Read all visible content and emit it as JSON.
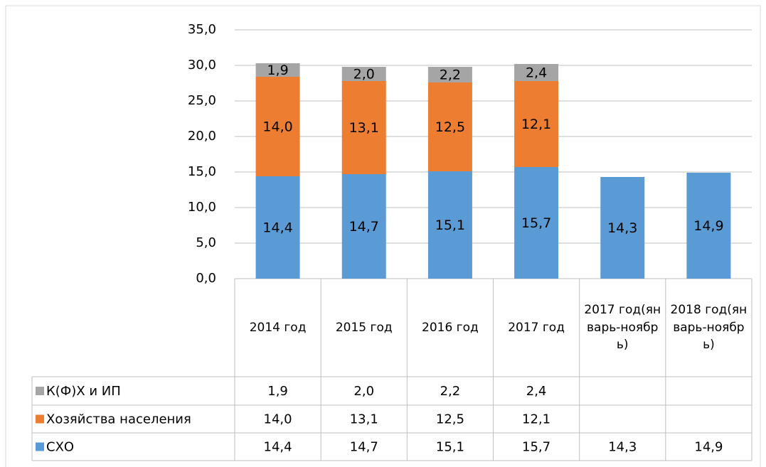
{
  "chart_data": {
    "type": "stacked_bar",
    "categories": [
      "2014 год",
      "2015 год",
      "2016 год",
      "2017 год",
      "2017 год(январь-ноябрь)",
      "2018 год(январь-ноябрь)"
    ],
    "series": [
      {
        "name": "СХО",
        "color": "#5b9bd5",
        "values": [
          14.4,
          14.7,
          15.1,
          15.7,
          14.3,
          14.9
        ],
        "value_labels": [
          "14,4",
          "14,7",
          "15,1",
          "15,7",
          "14,3",
          "14,9"
        ]
      },
      {
        "name": "Хозяйства населения",
        "color": "#ed7d31",
        "values": [
          14.0,
          13.1,
          12.5,
          12.1,
          null,
          null
        ],
        "value_labels": [
          "14,0",
          "13,1",
          "12,5",
          "12,1",
          null,
          null
        ]
      },
      {
        "name": "К(Ф)Х и ИП",
        "color": "#a5a5a5",
        "values": [
          1.9,
          2.0,
          2.2,
          2.4,
          null,
          null
        ],
        "value_labels": [
          "1,9",
          "2,0",
          "2,2",
          "2,4",
          null,
          null
        ]
      }
    ],
    "ylim": [
      0,
      35
    ],
    "yticks": [
      {
        "value": 0,
        "label": "0,0"
      },
      {
        "value": 5,
        "label": "5,0"
      },
      {
        "value": 10,
        "label": "10,0"
      },
      {
        "value": 15,
        "label": "15,0"
      },
      {
        "value": 20,
        "label": "20,0"
      },
      {
        "value": 25,
        "label": "25,0"
      },
      {
        "value": 30,
        "label": "30,0"
      },
      {
        "value": 35,
        "label": "35,0"
      }
    ],
    "grid": true,
    "data_table": true
  }
}
